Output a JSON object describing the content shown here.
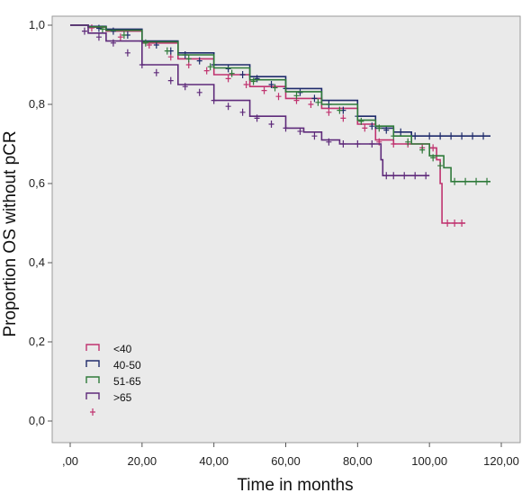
{
  "chart_data": {
    "type": "line",
    "title": "",
    "xlabel": "Time in months",
    "ylabel": "Proportion OS without pCR",
    "xlim": [
      0,
      120
    ],
    "ylim": [
      0,
      1
    ],
    "xticks": [
      ",00",
      "20,00",
      "40,00",
      "60,00",
      "80,00",
      "100,00",
      "120,00"
    ],
    "yticks": [
      "0,0",
      "0,2",
      "0,4",
      "0,6",
      "0,8",
      "1,0"
    ],
    "grid": false,
    "legend_position": "bottom-left",
    "background": "#eaeaea",
    "series": [
      {
        "name": "<40",
        "color": "#c0336f",
        "points": [
          [
            0,
            1.0
          ],
          [
            5,
            0.995
          ],
          [
            10,
            0.985
          ],
          [
            20,
            0.955
          ],
          [
            30,
            0.915
          ],
          [
            40,
            0.875
          ],
          [
            50,
            0.845
          ],
          [
            60,
            0.815
          ],
          [
            70,
            0.79
          ],
          [
            80,
            0.75
          ],
          [
            85,
            0.71
          ],
          [
            90,
            0.7
          ],
          [
            100,
            0.69
          ],
          [
            102,
            0.66
          ],
          [
            103,
            0.6
          ],
          [
            103.5,
            0.5
          ],
          [
            110,
            0.5
          ]
        ],
        "censor": [
          [
            6,
            0.993
          ],
          [
            14,
            0.97
          ],
          [
            22,
            0.95
          ],
          [
            28,
            0.92
          ],
          [
            33,
            0.9
          ],
          [
            38,
            0.885
          ],
          [
            44,
            0.865
          ],
          [
            49,
            0.85
          ],
          [
            54,
            0.835
          ],
          [
            58,
            0.82
          ],
          [
            63,
            0.81
          ],
          [
            67,
            0.8
          ],
          [
            72,
            0.78
          ],
          [
            76,
            0.765
          ],
          [
            82,
            0.74
          ],
          [
            86,
            0.705
          ],
          [
            90,
            0.7
          ],
          [
            94,
            0.7
          ],
          [
            98,
            0.69
          ],
          [
            101,
            0.69
          ],
          [
            105,
            0.5
          ],
          [
            107,
            0.5
          ],
          [
            109,
            0.5
          ]
        ]
      },
      {
        "name": "40-50",
        "color": "#1f2b6b",
        "points": [
          [
            0,
            1.0
          ],
          [
            5,
            0.997
          ],
          [
            10,
            0.99
          ],
          [
            20,
            0.96
          ],
          [
            30,
            0.93
          ],
          [
            40,
            0.9
          ],
          [
            50,
            0.87
          ],
          [
            60,
            0.84
          ],
          [
            70,
            0.81
          ],
          [
            80,
            0.77
          ],
          [
            85,
            0.74
          ],
          [
            90,
            0.73
          ],
          [
            95,
            0.72
          ],
          [
            117,
            0.72
          ]
        ],
        "censor": [
          [
            8,
            0.992
          ],
          [
            12,
            0.985
          ],
          [
            16,
            0.975
          ],
          [
            20,
            0.96
          ],
          [
            24,
            0.95
          ],
          [
            28,
            0.935
          ],
          [
            32,
            0.925
          ],
          [
            36,
            0.91
          ],
          [
            40,
            0.9
          ],
          [
            44,
            0.89
          ],
          [
            48,
            0.875
          ],
          [
            52,
            0.865
          ],
          [
            56,
            0.85
          ],
          [
            60,
            0.84
          ],
          [
            64,
            0.83
          ],
          [
            68,
            0.815
          ],
          [
            72,
            0.8
          ],
          [
            76,
            0.785
          ],
          [
            80,
            0.77
          ],
          [
            84,
            0.745
          ],
          [
            88,
            0.735
          ],
          [
            92,
            0.73
          ],
          [
            96,
            0.72
          ],
          [
            100,
            0.72
          ],
          [
            103,
            0.72
          ],
          [
            106,
            0.72
          ],
          [
            109,
            0.72
          ],
          [
            112,
            0.72
          ],
          [
            115,
            0.72
          ]
        ]
      },
      {
        "name": "51-65",
        "color": "#2f7a3a",
        "points": [
          [
            0,
            1.0
          ],
          [
            5,
            0.996
          ],
          [
            10,
            0.987
          ],
          [
            20,
            0.958
          ],
          [
            30,
            0.925
          ],
          [
            40,
            0.892
          ],
          [
            50,
            0.862
          ],
          [
            60,
            0.832
          ],
          [
            70,
            0.8
          ],
          [
            80,
            0.76
          ],
          [
            85,
            0.745
          ],
          [
            90,
            0.72
          ],
          [
            95,
            0.7
          ],
          [
            100,
            0.67
          ],
          [
            104,
            0.64
          ],
          [
            106,
            0.605
          ],
          [
            117,
            0.605
          ]
        ],
        "censor": [
          [
            9,
            0.99
          ],
          [
            15,
            0.975
          ],
          [
            21,
            0.955
          ],
          [
            27,
            0.935
          ],
          [
            33,
            0.915
          ],
          [
            39,
            0.895
          ],
          [
            45,
            0.878
          ],
          [
            51,
            0.858
          ],
          [
            57,
            0.842
          ],
          [
            63,
            0.822
          ],
          [
            69,
            0.805
          ],
          [
            75,
            0.785
          ],
          [
            81,
            0.757
          ],
          [
            86,
            0.74
          ],
          [
            90,
            0.72
          ],
          [
            94,
            0.705
          ],
          [
            98,
            0.685
          ],
          [
            101,
            0.665
          ],
          [
            103,
            0.645
          ],
          [
            107,
            0.605
          ],
          [
            110,
            0.605
          ],
          [
            113,
            0.605
          ],
          [
            116,
            0.605
          ]
        ]
      },
      {
        "name": ">65",
        "color": "#5e2a7a",
        "points": [
          [
            0,
            1.0
          ],
          [
            5,
            0.98
          ],
          [
            10,
            0.96
          ],
          [
            20,
            0.9
          ],
          [
            30,
            0.85
          ],
          [
            40,
            0.81
          ],
          [
            50,
            0.77
          ],
          [
            60,
            0.74
          ],
          [
            65,
            0.73
          ],
          [
            70,
            0.71
          ],
          [
            75,
            0.7
          ],
          [
            80,
            0.7
          ],
          [
            85,
            0.7
          ],
          [
            86.5,
            0.66
          ],
          [
            87,
            0.62
          ],
          [
            100,
            0.62
          ]
        ],
        "censor": [
          [
            4,
            0.985
          ],
          [
            8,
            0.97
          ],
          [
            12,
            0.955
          ],
          [
            16,
            0.93
          ],
          [
            20,
            0.9
          ],
          [
            24,
            0.88
          ],
          [
            28,
            0.86
          ],
          [
            32,
            0.845
          ],
          [
            36,
            0.83
          ],
          [
            40,
            0.81
          ],
          [
            44,
            0.795
          ],
          [
            48,
            0.78
          ],
          [
            52,
            0.765
          ],
          [
            56,
            0.75
          ],
          [
            60,
            0.74
          ],
          [
            64,
            0.732
          ],
          [
            68,
            0.72
          ],
          [
            72,
            0.705
          ],
          [
            76,
            0.7
          ],
          [
            80,
            0.7
          ],
          [
            84,
            0.7
          ],
          [
            88,
            0.62
          ],
          [
            90,
            0.62
          ],
          [
            93,
            0.62
          ],
          [
            96,
            0.62
          ],
          [
            99,
            0.62
          ]
        ]
      }
    ]
  },
  "legend": {
    "items": [
      {
        "label": "<40",
        "color": "#c0336f"
      },
      {
        "label": "40-50",
        "color": "#1f2b6b"
      },
      {
        "label": "51-65",
        "color": "#2f7a3a"
      },
      {
        "label": ">65",
        "color": "#5e2a7a"
      }
    ],
    "censor_color": "#c0336f"
  }
}
